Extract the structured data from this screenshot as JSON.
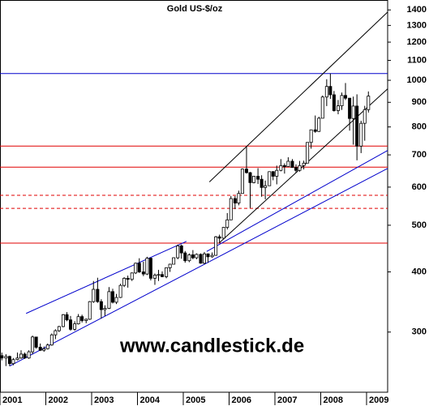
{
  "chart_data": {
    "type": "candlestick",
    "title": "Gold US-$/oz",
    "annotations": [
      "www.candlestick.de"
    ],
    "log_scale": true,
    "up_color": "#ffffff",
    "down_color": "#000000",
    "edge_color": "#000000",
    "xlim": [
      2001,
      2009.46
    ],
    "xticks": [
      2001,
      2002,
      2003,
      2004,
      2005,
      2006,
      2007,
      2008,
      2009
    ],
    "ylim": [
      225,
      1468
    ],
    "yticks": [
      300,
      400,
      500,
      600,
      700,
      800,
      900,
      1000,
      1100,
      1200,
      1300,
      1400
    ],
    "x": [
      2001.04,
      2001.13,
      2001.21,
      2001.29,
      2001.38,
      2001.46,
      2001.54,
      2001.63,
      2001.71,
      2001.79,
      2001.88,
      2001.96,
      2002.04,
      2002.13,
      2002.21,
      2002.29,
      2002.38,
      2002.46,
      2002.54,
      2002.63,
      2002.71,
      2002.79,
      2002.88,
      2002.96,
      2003.04,
      2003.13,
      2003.21,
      2003.29,
      2003.38,
      2003.46,
      2003.54,
      2003.63,
      2003.71,
      2003.79,
      2003.88,
      2003.96,
      2004.04,
      2004.13,
      2004.21,
      2004.29,
      2004.38,
      2004.46,
      2004.54,
      2004.63,
      2004.71,
      2004.79,
      2004.88,
      2004.96,
      2005.04,
      2005.13,
      2005.21,
      2005.29,
      2005.38,
      2005.46,
      2005.54,
      2005.63,
      2005.71,
      2005.79,
      2005.88,
      2005.96,
      2006.04,
      2006.13,
      2006.21,
      2006.29,
      2006.38,
      2006.46,
      2006.54,
      2006.63,
      2006.71,
      2006.79,
      2006.88,
      2006.96,
      2007.04,
      2007.13,
      2007.21,
      2007.29,
      2007.38,
      2007.46,
      2007.54,
      2007.63,
      2007.71,
      2007.79,
      2007.88,
      2007.96,
      2008.04,
      2008.13,
      2008.21,
      2008.29,
      2008.38,
      2008.46,
      2008.54,
      2008.63,
      2008.71,
      2008.79,
      2008.88,
      2008.96,
      2009.04
    ],
    "open": [
      268,
      265,
      267,
      258,
      263,
      265,
      270,
      265,
      273,
      293,
      279,
      275,
      277,
      282,
      296,
      302,
      308,
      326,
      318,
      304,
      312,
      323,
      317,
      319,
      347,
      368,
      347,
      334,
      336,
      364,
      346,
      354,
      375,
      388,
      386,
      398,
      417,
      400,
      396,
      427,
      388,
      394,
      395,
      391,
      408,
      415,
      428,
      453,
      438,
      422,
      434,
      428,
      435,
      417,
      436,
      430,
      433,
      473,
      470,
      495,
      513,
      568,
      556,
      582,
      654,
      643,
      613,
      632,
      623,
      599,
      604,
      646,
      632,
      650,
      665,
      662,
      679,
      659,
      650,
      665,
      673,
      743,
      789,
      783,
      834,
      923,
      971,
      933,
      865,
      885,
      930,
      918,
      833,
      884,
      730,
      814,
      869
    ],
    "high": [
      272,
      270,
      268,
      265,
      272,
      275,
      272,
      275,
      295,
      293,
      284,
      280,
      284,
      298,
      304,
      309,
      327,
      330,
      324,
      316,
      327,
      326,
      320,
      348,
      383,
      389,
      351,
      341,
      372,
      369,
      360,
      378,
      390,
      393,
      399,
      418,
      427,
      420,
      430,
      428,
      397,
      404,
      401,
      408,
      416,
      429,
      456,
      456,
      442,
      437,
      444,
      437,
      437,
      440,
      437,
      439,
      475,
      478,
      496,
      530,
      575,
      575,
      590,
      656,
      730,
      645,
      633,
      657,
      635,
      619,
      647,
      648,
      665,
      686,
      672,
      692,
      686,
      669,
      680,
      681,
      743,
      790,
      845,
      840,
      930,
      1005,
      1033,
      950,
      910,
      943,
      987,
      919,
      925,
      935,
      824,
      885,
      948
    ],
    "low": [
      262,
      255,
      255,
      256,
      262,
      264,
      264,
      264,
      270,
      277,
      274,
      273,
      276,
      281,
      290,
      300,
      307,
      316,
      302,
      302,
      311,
      314,
      313,
      318,
      345,
      345,
      320,
      324,
      335,
      344,
      343,
      353,
      372,
      371,
      383,
      396,
      398,
      392,
      394,
      384,
      376,
      383,
      390,
      388,
      400,
      415,
      425,
      426,
      418,
      419,
      425,
      425,
      416,
      415,
      418,
      428,
      432,
      461,
      467,
      490,
      514,
      540,
      550,
      582,
      640,
      543,
      611,
      609,
      573,
      566,
      604,
      620,
      608,
      647,
      640,
      662,
      659,
      642,
      646,
      653,
      673,
      721,
      778,
      781,
      836,
      884,
      915,
      861,
      850,
      868,
      910,
      786,
      735,
      682,
      706,
      749,
      857
    ],
    "close": [
      265,
      267,
      258,
      263,
      265,
      270,
      265,
      273,
      293,
      279,
      275,
      277,
      282,
      296,
      302,
      308,
      326,
      318,
      304,
      312,
      323,
      317,
      319,
      347,
      368,
      347,
      334,
      336,
      364,
      346,
      354,
      375,
      388,
      386,
      398,
      417,
      400,
      396,
      427,
      388,
      394,
      395,
      391,
      408,
      415,
      428,
      453,
      438,
      422,
      434,
      428,
      435,
      417,
      436,
      430,
      433,
      473,
      470,
      495,
      513,
      568,
      556,
      582,
      654,
      643,
      613,
      632,
      623,
      599,
      604,
      646,
      632,
      650,
      665,
      662,
      679,
      659,
      650,
      665,
      673,
      743,
      789,
      783,
      834,
      923,
      971,
      933,
      865,
      885,
      930,
      918,
      833,
      884,
      730,
      814,
      869,
      927
    ],
    "hlines": [
      {
        "value": 1033,
        "color": "#0000cc",
        "dashed": false
      },
      {
        "value": 730,
        "color": "#e00000",
        "dashed": false
      },
      {
        "value": 660,
        "color": "#e00000",
        "dashed": false
      },
      {
        "value": 577,
        "color": "#e00000",
        "dashed": true
      },
      {
        "value": 542,
        "color": "#e00000",
        "dashed": true
      },
      {
        "value": 459,
        "color": "#e00000",
        "dashed": false
      }
    ],
    "lines": [
      {
        "x": [
          2001.57,
          2005.07
        ],
        "y": [
          328,
          463
        ],
        "color": "#0000cc"
      },
      {
        "x": [
          2001.21,
          2009.46
        ],
        "y": [
          255,
          656
        ],
        "color": "#0000cc"
      },
      {
        "x": [
          2005.51,
          2009.46
        ],
        "y": [
          441,
          715
        ],
        "color": "#0000cc"
      },
      {
        "x": [
          2005.57,
          2009.46
        ],
        "y": [
          615,
          1386
        ],
        "color": "#000000"
      },
      {
        "x": [
          2005.78,
          2009.46
        ],
        "y": [
          459,
          960
        ],
        "color": "#000000"
      }
    ]
  }
}
